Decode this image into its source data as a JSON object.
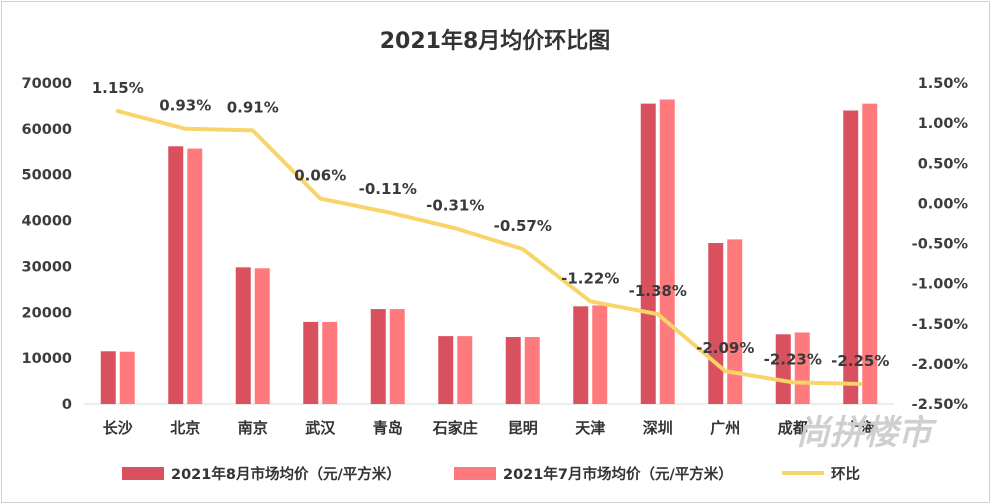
{
  "chart_data": {
    "type": "bar+line",
    "title": "2021年8月均价环比图",
    "categories": [
      "长沙",
      "北京",
      "南京",
      "武汉",
      "青岛",
      "石家庄",
      "昆明",
      "天津",
      "深圳",
      "广州",
      "成都",
      "上海"
    ],
    "series": [
      {
        "name": "2021年8月市场均价（元/平方米）",
        "type": "bar",
        "axis": "left",
        "color": "#d9505e",
        "values": [
          11500,
          56200,
          29800,
          17900,
          20700,
          14800,
          14600,
          21300,
          65500,
          35100,
          15200,
          64000
        ]
      },
      {
        "name": "2021年7月市场均价（元/平方米）",
        "type": "bar",
        "axis": "left",
        "color": "#ff7a7c",
        "values": [
          11400,
          55700,
          29600,
          17900,
          20700,
          14800,
          14600,
          21500,
          66400,
          35900,
          15600,
          65500
        ]
      },
      {
        "name": "环比",
        "type": "line",
        "axis": "right",
        "color": "#f7d56b",
        "values": [
          1.15,
          0.93,
          0.91,
          0.06,
          -0.11,
          -0.31,
          -0.57,
          -1.22,
          -1.38,
          -2.09,
          -2.23,
          -2.25
        ],
        "labels": [
          "1.15%",
          "0.93%",
          "0.91%",
          "0.06%",
          "-0.11%",
          "-0.31%",
          "-0.57%",
          "-1.22%",
          "-1.38%",
          "-2.09%",
          "-2.23%",
          "-2.25%"
        ]
      }
    ],
    "y_left": {
      "range": [
        0,
        70000
      ],
      "ticks": [
        "0",
        "10000",
        "20000",
        "30000",
        "40000",
        "50000",
        "60000",
        "70000"
      ]
    },
    "y_right": {
      "range": [
        -2.5,
        1.5
      ],
      "ticks": [
        "-2.50%",
        "-2.00%",
        "-1.50%",
        "-1.00%",
        "-0.50%",
        "0.00%",
        "0.50%",
        "1.00%",
        "1.50%"
      ]
    },
    "grid": false,
    "legend_position": "bottom"
  },
  "watermark": "尚拼楼市"
}
